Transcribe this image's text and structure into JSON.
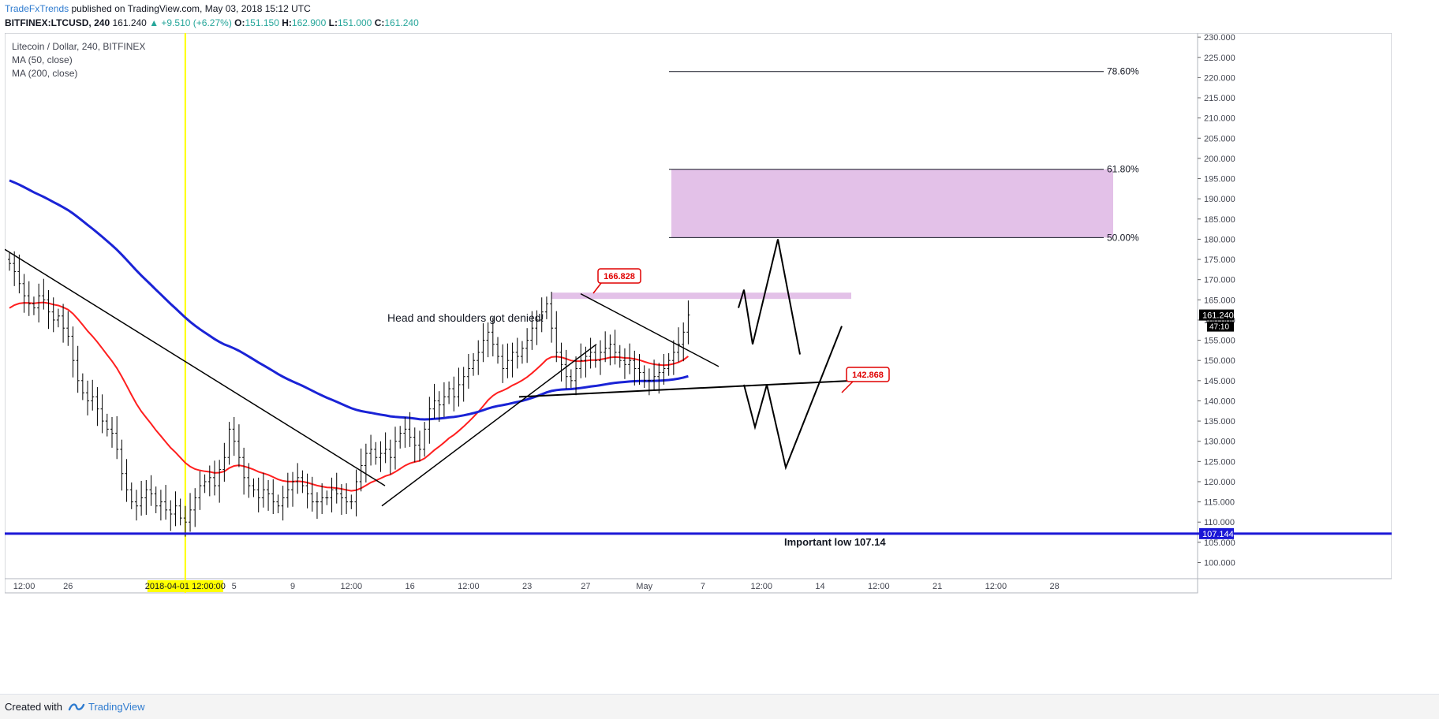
{
  "header": {
    "author": "TradeFxTrends",
    "published": "published on TradingView.com, May 03, 2018 15:12 UTC",
    "symbol": "BITFINEX:LTCUSD, 240",
    "last": "161.240",
    "change": "▲ +9.510 (+6.27%)",
    "o_label": "O:",
    "o_val": "151.150",
    "h_label": "H:",
    "h_val": "162.900",
    "l_label": "L:",
    "l_val": "151.000",
    "c_label": "C:",
    "c_val": "161.240"
  },
  "legend": {
    "title": "Litecoin / Dollar, 240, BITFINEX",
    "ma50": "MA (50, close)",
    "ma200": "MA (200, close)"
  },
  "footer": {
    "created": "Created with",
    "brand": "TradingView"
  },
  "colors": {
    "ma50": "#ff1f1f",
    "ma200": "#1a23d6",
    "zone": "#e1bee7",
    "support": "#1b17d6",
    "vline": "#ffff00",
    "label_red": "#e00000"
  },
  "chart_data": {
    "type": "ohlc",
    "ylim": [
      96,
      231
    ],
    "y_ticks": [
      "230.000",
      "225.000",
      "220.000",
      "215.000",
      "210.000",
      "205.000",
      "200.000",
      "195.000",
      "190.000",
      "185.000",
      "180.000",
      "175.000",
      "170.000",
      "165.000",
      "160.000",
      "155.000",
      "150.000",
      "145.000",
      "140.000",
      "135.000",
      "130.000",
      "125.000",
      "120.000",
      "115.000",
      "110.000",
      "105.000",
      "100.000"
    ],
    "y_tick_values": [
      230,
      225,
      220,
      215,
      210,
      205,
      200,
      195,
      190,
      185,
      180,
      175,
      170,
      165,
      160,
      155,
      150,
      145,
      140,
      135,
      130,
      125,
      120,
      115,
      110,
      105,
      100
    ],
    "x_ticks": [
      {
        "label": "12:00",
        "bar": 3
      },
      {
        "label": "26",
        "bar": 12
      },
      {
        "label": "2018-04-01 12:00:00",
        "bar": 36,
        "highlight": true
      },
      {
        "label": "5",
        "bar": 46
      },
      {
        "label": "9",
        "bar": 58
      },
      {
        "label": "12:00",
        "bar": 70
      },
      {
        "label": "16",
        "bar": 82
      },
      {
        "label": "12:00",
        "bar": 94
      },
      {
        "label": "23",
        "bar": 106
      },
      {
        "label": "27",
        "bar": 118
      },
      {
        "label": "May",
        "bar": 130
      },
      {
        "label": "7",
        "bar": 142
      },
      {
        "label": "12:00",
        "bar": 154
      },
      {
        "label": "14",
        "bar": 166
      },
      {
        "label": "12:00",
        "bar": 178
      },
      {
        "label": "21",
        "bar": 190
      },
      {
        "label": "12:00",
        "bar": 202
      },
      {
        "label": "28",
        "bar": 214
      }
    ],
    "price_marker": {
      "value": "161.240",
      "countdown": "47:10",
      "y": 161.24
    },
    "support_marker": {
      "value": "107.144",
      "y": 107.144
    },
    "fib_levels": [
      {
        "label": "78.60%",
        "y": 221.5
      },
      {
        "label": "61.80%",
        "y": 197.3
      },
      {
        "label": "50.00%",
        "y": 180.4
      }
    ],
    "annotations": {
      "hs_text": "Head and shoulders got denied!",
      "low_text": "Important low 107.14",
      "high_label": "166.828",
      "low_label": "142.868"
    },
    "series": [
      {
        "name": "MA (50, close)",
        "ma": 50
      },
      {
        "name": "MA (200, close)",
        "ma": 200
      }
    ],
    "closes": [
      174,
      172,
      169,
      166,
      164,
      163,
      166,
      165,
      162,
      160,
      161,
      158,
      156,
      150,
      145,
      142,
      140,
      141,
      138,
      135,
      133,
      132,
      128,
      122,
      118,
      115,
      114,
      116,
      118,
      117,
      114,
      115,
      113,
      112,
      114,
      111,
      110,
      113,
      116,
      119,
      120,
      121,
      119,
      123,
      126,
      133,
      130,
      126,
      121,
      119,
      118,
      116,
      118,
      117,
      115,
      114,
      116,
      118,
      120,
      121,
      119,
      117,
      115,
      115,
      116,
      116,
      118,
      117,
      116,
      115,
      115,
      120,
      124,
      127,
      128,
      126,
      127,
      128,
      126,
      130,
      132,
      133,
      131,
      129,
      128,
      133,
      138,
      140,
      139,
      141,
      143,
      141,
      144,
      146,
      148,
      150,
      152,
      155,
      157,
      154,
      151,
      148,
      150,
      152,
      151,
      153,
      155,
      158,
      160,
      162,
      164,
      158,
      152,
      149,
      146,
      145,
      148,
      150,
      151,
      152,
      150,
      152,
      153,
      154,
      152,
      150,
      149,
      150,
      148,
      147,
      145,
      145,
      146,
      147,
      148,
      150,
      152,
      154,
      157,
      161.24
    ]
  }
}
